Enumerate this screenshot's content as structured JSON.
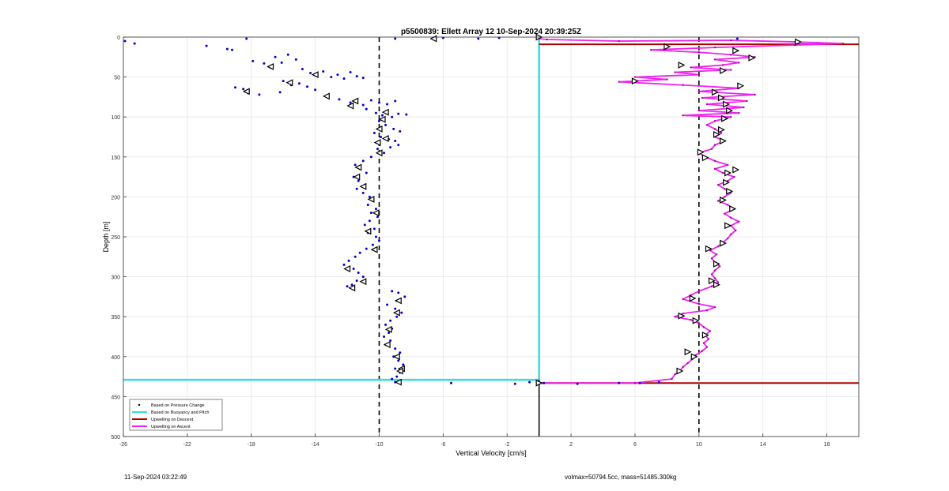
{
  "footer": {
    "timestamp": "11-Sep-2024 03:22:49",
    "mass_info": "volmax=50794.5cc, mass=51485.300kg"
  },
  "chart_data": {
    "type": "scatter",
    "title": "p5500839: Ellett Array 12 10-Sep-2024 20:39:25Z",
    "xlabel": "Vertical Velocity [cm/s]",
    "ylabel": "Depth [m]",
    "xlim": [
      -26,
      20
    ],
    "ylim": [
      0,
      500
    ],
    "y_reversed": true,
    "grid": true,
    "x_ticks": [
      -26,
      -22,
      -18,
      -14,
      -10,
      -6,
      -2,
      2,
      6,
      10,
      14,
      18
    ],
    "y_ticks": [
      0,
      50,
      100,
      150,
      200,
      250,
      300,
      350,
      400,
      450,
      500
    ],
    "reference_lines_x": [
      -10,
      10
    ],
    "zero_line_x": 0,
    "legend": {
      "placement": "bottom-left",
      "entries": [
        {
          "label": "Based on Pressure Change",
          "color": "#000000",
          "style": "dot"
        },
        {
          "label": "Based on Buoyancy and Pitch",
          "color": "#33dddd",
          "style": "line"
        },
        {
          "label": "Upwelling on Descent",
          "color": "#aa0000",
          "style": "line"
        },
        {
          "label": "Upwelling on Ascent",
          "color": "#ee22ee",
          "style": "line"
        }
      ]
    },
    "colors": {
      "pressure_dots": "#0000cc",
      "buoyancy": "#33dddd",
      "descent": "#aa0000",
      "ascent": "#ee22ee"
    },
    "buoyancy_pitch": [
      [
        0,
        0
      ],
      [
        0,
        429
      ],
      [
        -26,
        429
      ]
    ],
    "upwelling_descent": [
      [
        0,
        9
      ],
      [
        20,
        9
      ],
      [
        0,
        433
      ],
      [
        20,
        433
      ]
    ],
    "descent_dots": [
      [
        -25.9,
        5
      ],
      [
        -25.3,
        8
      ],
      [
        -20.8,
        11
      ],
      [
        -19.5,
        15
      ],
      [
        -19.2,
        16
      ],
      [
        -18.3,
        2
      ],
      [
        -17.9,
        30
      ],
      [
        -17.2,
        33
      ],
      [
        -16.8,
        38
      ],
      [
        -16.5,
        25
      ],
      [
        -16.1,
        32
      ],
      [
        -15.7,
        22
      ],
      [
        -15.2,
        28
      ],
      [
        -14.8,
        40
      ],
      [
        -14.3,
        45
      ],
      [
        -13.9,
        48
      ],
      [
        -13.5,
        43
      ],
      [
        -13.0,
        50
      ],
      [
        -12.6,
        47
      ],
      [
        -12.2,
        52
      ],
      [
        -11.8,
        44
      ],
      [
        -11.4,
        49
      ],
      [
        -11.0,
        51
      ],
      [
        -16.0,
        55
      ],
      [
        -15.5,
        60
      ],
      [
        -15.0,
        58
      ],
      [
        -14.5,
        62
      ],
      [
        -14.0,
        66
      ],
      [
        -18.5,
        65
      ],
      [
        -19.0,
        63
      ],
      [
        -18.2,
        70
      ],
      [
        -17.5,
        72
      ],
      [
        -16.2,
        69
      ],
      [
        -13.2,
        73
      ],
      [
        -12.5,
        78
      ],
      [
        -11.8,
        82
      ],
      [
        -11.0,
        85
      ],
      [
        -10.5,
        79
      ],
      [
        -10.0,
        82
      ],
      [
        -9.5,
        84
      ],
      [
        -9.0,
        80
      ],
      [
        -10.8,
        90
      ],
      [
        -10.2,
        95
      ],
      [
        -9.8,
        98
      ],
      [
        -9.2,
        100
      ],
      [
        -8.8,
        96
      ],
      [
        -8.3,
        97
      ],
      [
        -10.0,
        105
      ],
      [
        -9.6,
        110
      ],
      [
        -9.1,
        115
      ],
      [
        -8.7,
        118
      ],
      [
        -10.3,
        120
      ],
      [
        -9.9,
        125
      ],
      [
        -9.4,
        128
      ],
      [
        -9.0,
        130
      ],
      [
        -8.8,
        135
      ],
      [
        -10.1,
        140
      ],
      [
        -9.7,
        145
      ],
      [
        -9.3,
        138
      ],
      [
        -10.5,
        150
      ],
      [
        -11.0,
        155
      ],
      [
        -11.5,
        160
      ],
      [
        -11.2,
        165
      ],
      [
        -10.8,
        170
      ],
      [
        -11.6,
        175
      ],
      [
        -11.3,
        180
      ],
      [
        -10.9,
        185
      ],
      [
        -11.4,
        190
      ],
      [
        -11.0,
        195
      ],
      [
        -10.6,
        200
      ],
      [
        -10.4,
        205
      ],
      [
        -10.7,
        210
      ],
      [
        -10.2,
        215
      ],
      [
        -10.5,
        220
      ],
      [
        -10.1,
        225
      ],
      [
        -10.6,
        230
      ],
      [
        -10.9,
        235
      ],
      [
        -10.3,
        240
      ],
      [
        -10.7,
        245
      ],
      [
        -10.2,
        250
      ],
      [
        -10.0,
        255
      ],
      [
        -10.4,
        260
      ],
      [
        -10.8,
        265
      ],
      [
        -11.2,
        270
      ],
      [
        -11.5,
        275
      ],
      [
        -11.9,
        280
      ],
      [
        -12.2,
        285
      ],
      [
        -11.6,
        290
      ],
      [
        -11.3,
        295
      ],
      [
        -11.0,
        300
      ],
      [
        -11.4,
        305
      ],
      [
        -11.7,
        310
      ],
      [
        -12.0,
        312
      ],
      [
        -9.2,
        318
      ],
      [
        -8.8,
        320
      ],
      [
        -8.4,
        325
      ],
      [
        -8.9,
        330
      ],
      [
        -9.5,
        335
      ],
      [
        -9.0,
        340
      ],
      [
        -8.6,
        345
      ],
      [
        -8.9,
        350
      ],
      [
        -9.3,
        355
      ],
      [
        -9.6,
        360
      ],
      [
        -9.2,
        365
      ],
      [
        -9.4,
        370
      ],
      [
        -9.7,
        375
      ],
      [
        -9.3,
        380
      ],
      [
        -9.6,
        385
      ],
      [
        -9.0,
        390
      ],
      [
        -8.7,
        395
      ],
      [
        -9.1,
        400
      ],
      [
        -8.8,
        405
      ],
      [
        -8.5,
        410
      ],
      [
        -9.0,
        415
      ],
      [
        -8.7,
        420
      ],
      [
        -8.9,
        425
      ],
      [
        -9.2,
        428
      ],
      [
        -9.0,
        432
      ],
      [
        -5.5,
        433
      ],
      [
        -1.5,
        434
      ],
      [
        -0.6,
        432
      ],
      [
        -6.0,
        1
      ],
      [
        -3.8,
        2
      ],
      [
        -2.5,
        1
      ],
      [
        -9.0,
        2
      ]
    ],
    "descent_markers": [
      [
        -6.6,
        2
      ],
      [
        -18.3,
        68
      ],
      [
        -16.8,
        37
      ],
      [
        -14.0,
        47
      ],
      [
        -15.6,
        57
      ],
      [
        -13.3,
        74
      ],
      [
        -11.8,
        86
      ],
      [
        -11.5,
        80
      ],
      [
        -9.6,
        94
      ],
      [
        -9.8,
        103
      ],
      [
        -10.0,
        115
      ],
      [
        -9.6,
        127
      ],
      [
        -10.1,
        132
      ],
      [
        -10.0,
        145
      ],
      [
        -11.3,
        163
      ],
      [
        -11.4,
        175
      ],
      [
        -11.0,
        187
      ],
      [
        -10.5,
        203
      ],
      [
        -10.2,
        220
      ],
      [
        -10.7,
        243
      ],
      [
        -10.3,
        266
      ],
      [
        -12.0,
        290
      ],
      [
        -11.0,
        306
      ],
      [
        -11.7,
        314
      ],
      [
        -8.8,
        330
      ],
      [
        -8.9,
        345
      ],
      [
        -9.4,
        366
      ],
      [
        -9.5,
        385
      ],
      [
        -8.9,
        400
      ],
      [
        -8.6,
        415
      ],
      [
        -8.7,
        418
      ],
      [
        -8.8,
        432
      ]
    ],
    "ascent_line": [
      [
        0,
        433
      ],
      [
        6.0,
        433
      ],
      [
        8.3,
        428
      ],
      [
        8.5,
        422
      ],
      [
        8.8,
        418
      ],
      [
        9.0,
        413
      ],
      [
        9.3,
        408
      ],
      [
        9.6,
        403
      ],
      [
        9.8,
        398
      ],
      [
        10.2,
        393
      ],
      [
        10.5,
        388
      ],
      [
        10.3,
        383
      ],
      [
        10.6,
        378
      ],
      [
        10.4,
        373
      ],
      [
        10.7,
        368
      ],
      [
        10.3,
        363
      ],
      [
        10.0,
        358
      ],
      [
        9.5,
        354
      ],
      [
        8.5,
        350
      ],
      [
        9.0,
        346
      ],
      [
        10.5,
        342
      ],
      [
        11.0,
        338
      ],
      [
        10.0,
        334
      ],
      [
        9.0,
        328
      ],
      [
        9.5,
        323
      ],
      [
        10.0,
        318
      ],
      [
        10.8,
        312
      ],
      [
        11.2,
        307
      ],
      [
        11.0,
        302
      ],
      [
        10.8,
        297
      ],
      [
        11.0,
        292
      ],
      [
        11.3,
        287
      ],
      [
        11.0,
        282
      ],
      [
        10.8,
        277
      ],
      [
        11.1,
        272
      ],
      [
        10.7,
        267
      ],
      [
        11.2,
        262
      ],
      [
        11.5,
        257
      ],
      [
        11.8,
        252
      ],
      [
        12.0,
        247
      ],
      [
        12.3,
        242
      ],
      [
        12.0,
        236
      ],
      [
        12.5,
        231
      ],
      [
        12.0,
        226
      ],
      [
        11.6,
        221
      ],
      [
        12.2,
        215
      ],
      [
        11.8,
        210
      ],
      [
        11.2,
        205
      ],
      [
        11.6,
        200
      ],
      [
        12.0,
        195
      ],
      [
        11.6,
        190
      ],
      [
        11.2,
        185
      ],
      [
        11.8,
        180
      ],
      [
        12.2,
        175
      ],
      [
        11.5,
        170
      ],
      [
        11.0,
        165
      ],
      [
        11.8,
        160
      ],
      [
        11.0,
        155
      ],
      [
        10.4,
        150
      ],
      [
        10.0,
        145
      ],
      [
        10.8,
        140
      ],
      [
        11.0,
        135
      ],
      [
        11.6,
        130
      ],
      [
        11.0,
        125
      ],
      [
        11.4,
        120
      ],
      [
        11.0,
        115
      ],
      [
        10.5,
        110
      ],
      [
        11.0,
        105
      ],
      [
        12.0,
        100
      ],
      [
        9.0,
        98
      ],
      [
        12.5,
        95
      ],
      [
        10.0,
        92
      ],
      [
        12.8,
        88
      ],
      [
        10.5,
        84
      ],
      [
        13.0,
        80
      ],
      [
        10.2,
        76
      ],
      [
        13.5,
        72
      ],
      [
        10.0,
        68
      ],
      [
        12.5,
        64
      ],
      [
        9.0,
        60
      ],
      [
        5.0,
        56
      ],
      [
        8.0,
        53
      ],
      [
        6.0,
        50
      ],
      [
        10.0,
        47
      ],
      [
        8.5,
        44
      ],
      [
        12.0,
        41
      ],
      [
        9.5,
        38
      ],
      [
        11.5,
        35
      ],
      [
        12.5,
        32
      ],
      [
        11.0,
        28
      ],
      [
        13.5,
        25
      ],
      [
        12.0,
        22
      ],
      [
        10.0,
        19
      ],
      [
        7.0,
        16
      ],
      [
        11.0,
        13
      ],
      [
        16.0,
        10
      ],
      [
        19.0,
        8
      ],
      [
        16.0,
        6
      ],
      [
        12.0,
        4
      ],
      [
        5.0,
        5
      ],
      [
        0.5,
        3
      ],
      [
        0,
        2
      ]
    ],
    "ascent_dots": [
      [
        2.4,
        434
      ],
      [
        5.0,
        433
      ],
      [
        6.3,
        433
      ],
      [
        7.5,
        432
      ],
      [
        0.3,
        433
      ],
      [
        12.4,
        2
      ]
    ],
    "ascent_markers": [
      [
        0,
        433
      ],
      [
        8.8,
        418
      ],
      [
        9.3,
        394
      ],
      [
        9.7,
        400
      ],
      [
        10.4,
        373
      ],
      [
        9.8,
        355
      ],
      [
        8.9,
        349
      ],
      [
        9.6,
        327
      ],
      [
        11.1,
        310
      ],
      [
        10.8,
        305
      ],
      [
        11.1,
        284
      ],
      [
        10.6,
        265
      ],
      [
        11.5,
        258
      ],
      [
        11.8,
        236
      ],
      [
        12.1,
        215
      ],
      [
        11.5,
        204
      ],
      [
        11.9,
        193
      ],
      [
        11.7,
        182
      ],
      [
        12.3,
        166
      ],
      [
        11.8,
        170
      ],
      [
        10.4,
        151
      ],
      [
        10.1,
        144
      ],
      [
        11.5,
        130
      ],
      [
        11.1,
        122
      ],
      [
        11.4,
        116
      ],
      [
        11.6,
        102
      ],
      [
        11.9,
        92
      ],
      [
        11.7,
        84
      ],
      [
        11.4,
        76
      ],
      [
        11.0,
        69
      ],
      [
        12.6,
        61
      ],
      [
        6.0,
        55
      ],
      [
        8.9,
        35
      ],
      [
        11.5,
        42
      ],
      [
        13.3,
        26
      ],
      [
        12.3,
        17
      ],
      [
        8.0,
        12
      ],
      [
        16.2,
        6
      ],
      [
        0,
        0
      ]
    ]
  }
}
